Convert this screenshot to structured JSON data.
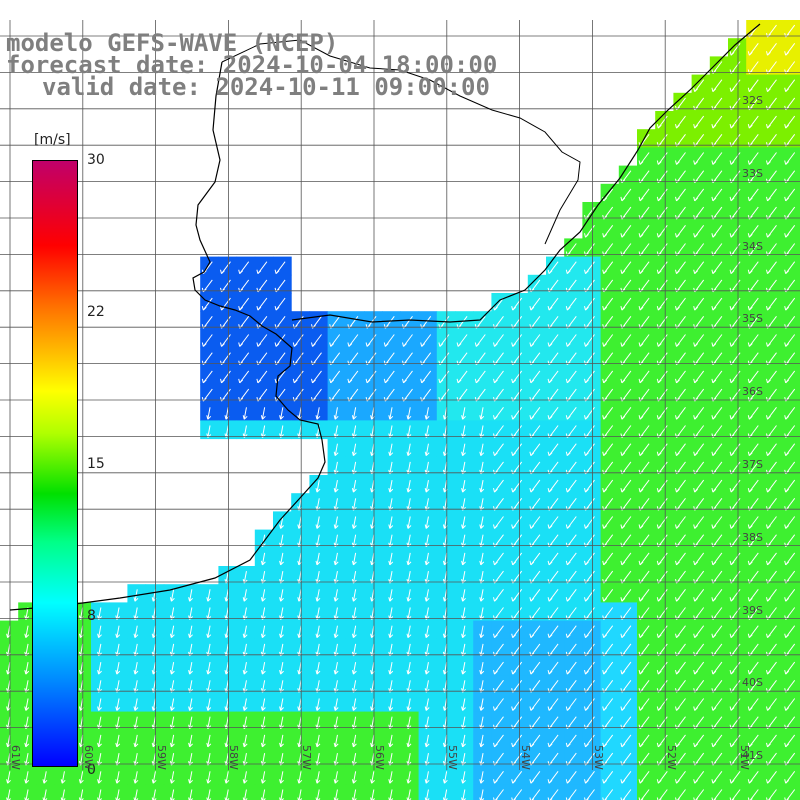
{
  "title": {
    "line1": "modelo GEFS-WAVE (NCEP)",
    "line2": "forecast date: 2024-10-04 18:00:00",
    "line3": "valid date: 2024-10-11 09:00:00"
  },
  "colorbar": {
    "unit": "[m/s]",
    "ticks": [
      {
        "label": "30",
        "value": 30
      },
      {
        "label": "22",
        "value": 22
      },
      {
        "label": "15",
        "value": 15
      },
      {
        "label": "8",
        "value": 8
      },
      {
        "label": "0",
        "value": 0
      }
    ],
    "range": [
      0,
      30
    ],
    "colors": [
      "#0000ff",
      "#00ffff",
      "#00e000",
      "#ffff00",
      "#ff0000",
      "#c0006a"
    ]
  },
  "map": {
    "lat_labels": [
      "32S",
      "33S",
      "34S",
      "35S",
      "36S",
      "37S",
      "38S",
      "39S",
      "40S",
      "41S"
    ],
    "lon_labels": [
      "61W",
      "60W",
      "59W",
      "58W",
      "57W",
      "56W",
      "55W",
      "54W",
      "53W",
      "52W",
      "51W"
    ],
    "lon_range": [
      -61,
      -50
    ],
    "lat_range": [
      -41.3,
      -30.2
    ],
    "wind_direction": "northeast-to-southwest",
    "land_color": "#ffffff",
    "grid": true
  }
}
